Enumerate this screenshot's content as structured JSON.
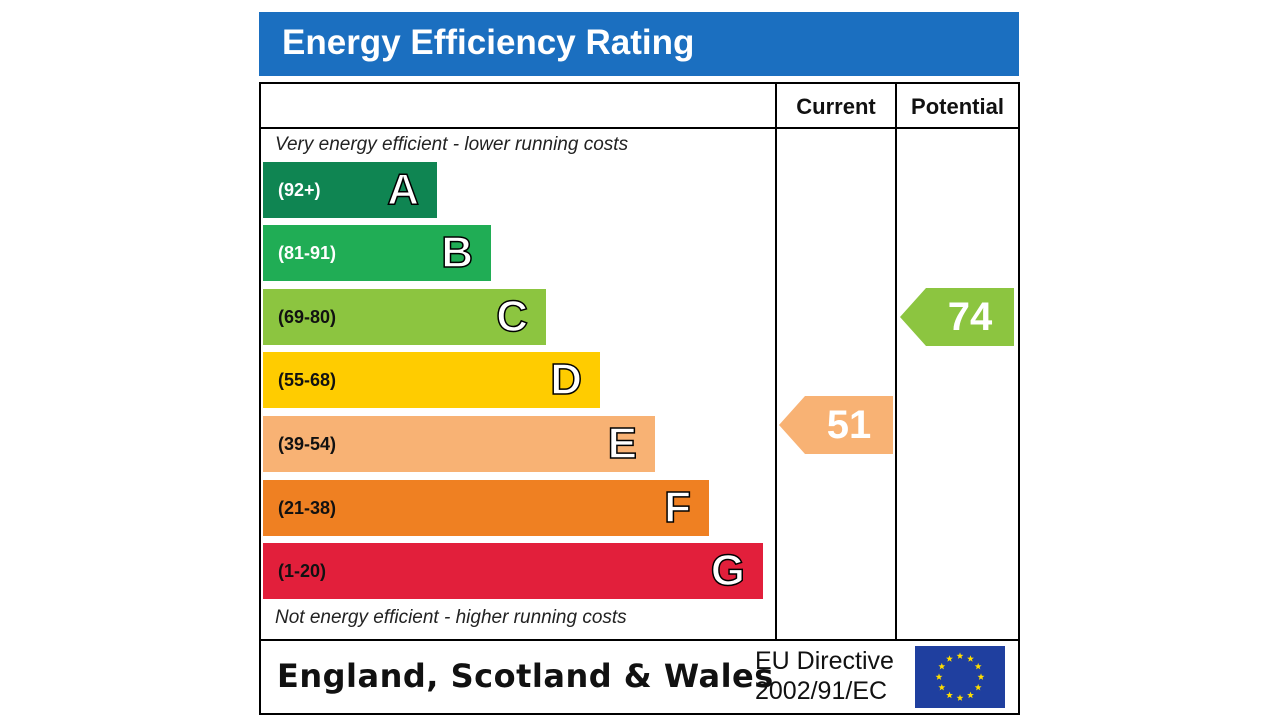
{
  "title": "Energy Efficiency Rating",
  "columns": {
    "current": "Current",
    "potential": "Potential"
  },
  "notes": {
    "top": "Very energy efficient - lower running costs",
    "bottom": "Not energy efficient - higher running costs"
  },
  "bands": [
    {
      "letter": "A",
      "range": "(92+)",
      "color": "#0f8552",
      "text_color": "#ffffff"
    },
    {
      "letter": "B",
      "range": "(81-91)",
      "color": "#20ad55",
      "text_color": "#ffffff"
    },
    {
      "letter": "C",
      "range": "(69-80)",
      "color": "#8cc540",
      "text_color": "#111111"
    },
    {
      "letter": "D",
      "range": "(55-68)",
      "color": "#ffcc00",
      "text_color": "#111111"
    },
    {
      "letter": "E",
      "range": "(39-54)",
      "color": "#f8b274",
      "text_color": "#111111"
    },
    {
      "letter": "F",
      "range": "(21-38)",
      "color": "#ef8022",
      "text_color": "#111111"
    },
    {
      "letter": "G",
      "range": "(1-20)",
      "color": "#e21f3b",
      "text_color": "#111111"
    }
  ],
  "ratings": {
    "current": {
      "value": "51",
      "band": "E",
      "color": "#f8b274"
    },
    "potential": {
      "value": "74",
      "band": "C",
      "color": "#8cc540"
    }
  },
  "footer": {
    "region": "England, Scotland & Wales",
    "directive_line1": "EU Directive",
    "directive_line2": "2002/91/EC"
  },
  "icons": {
    "flag": "eu-flag-icon"
  },
  "colors": {
    "header": "#1b6fc0",
    "eu_flag": "#1f3f9f",
    "eu_stars": "#ffde00"
  }
}
